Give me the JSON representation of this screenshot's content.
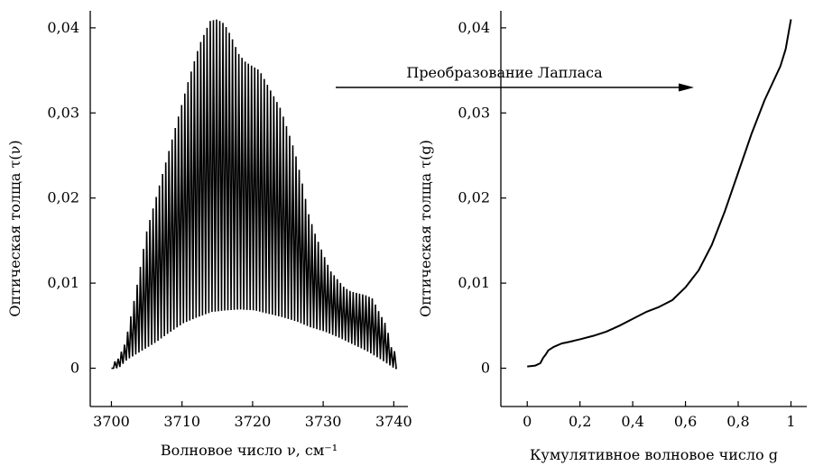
{
  "chart_data": [
    {
      "type": "line",
      "xlabel": "Волновое число ν, см⁻¹",
      "ylabel": "Оптическая толща τ(ν)",
      "xlim": [
        3697,
        3742
      ],
      "ylim": [
        -0.0045,
        0.042
      ],
      "x_ticks": [
        3700,
        3710,
        3720,
        3730,
        3740
      ],
      "x_tick_labels": [
        "3700",
        "3710",
        "3720",
        "3730",
        "3740"
      ],
      "y_ticks": [
        0,
        0.01,
        0.02,
        0.03,
        0.04
      ],
      "y_tick_labels": [
        "0",
        "0,01",
        "0,02",
        "0,03",
        "0,04"
      ],
      "grid": false,
      "legend": "none",
      "series": [
        {
          "style": "oscillating absorption lines",
          "onset_x": 3700.3,
          "end_x": 3740.2,
          "line_spacing": 0.45,
          "peak_envelope": {
            "x": [
              3700.8,
              3702,
              3703.5,
              3705,
              3707,
              3709,
              3711,
              3712.5,
              3714,
              3715,
              3716,
              3717,
              3718,
              3719,
              3720,
              3721,
              3722,
              3723,
              3724,
              3725,
              3726,
              3727,
              3728,
              3729,
              3730,
              3731,
              3732,
              3733,
              3734,
              3735,
              3736,
              3737,
              3738,
              3739,
              3739.8
            ],
            "y": [
              0.0008,
              0.003,
              0.009,
              0.016,
              0.022,
              0.028,
              0.034,
              0.038,
              0.0408,
              0.041,
              0.0405,
              0.039,
              0.037,
              0.036,
              0.0355,
              0.035,
              0.0335,
              0.032,
              0.0305,
              0.028,
              0.0255,
              0.022,
              0.018,
              0.0155,
              0.0135,
              0.0115,
              0.0105,
              0.0095,
              0.009,
              0.0088,
              0.0086,
              0.0082,
              0.0065,
              0.005,
              0.002
            ]
          },
          "trough_envelope": {
            "x": [
              3700.8,
              3702,
              3704,
              3706,
              3708,
              3710,
              3712,
              3714,
              3716,
              3718,
              3720,
              3722,
              3724,
              3726,
              3728,
              3730,
              3732,
              3734,
              3736,
              3738,
              3739.8
            ],
            "y": [
              0.0,
              0.001,
              0.002,
              0.003,
              0.0042,
              0.0053,
              0.006,
              0.0066,
              0.0068,
              0.0069,
              0.0068,
              0.0064,
              0.006,
              0.0055,
              0.0048,
              0.0043,
              0.0036,
              0.0028,
              0.002,
              0.001,
              0.0
            ]
          }
        }
      ]
    },
    {
      "type": "line",
      "xlabel": "Кумулятивное волновое число g",
      "ylabel": "Оптическая толща τ(g)",
      "xlim": [
        -0.1,
        1.06
      ],
      "ylim": [
        -0.0045,
        0.042
      ],
      "x_ticks": [
        0,
        0.2,
        0.4,
        0.6,
        0.8,
        1
      ],
      "x_tick_labels": [
        "0",
        "0,2",
        "0,4",
        "0,6",
        "0,8",
        "1"
      ],
      "y_ticks": [
        0,
        0.01,
        0.02,
        0.03,
        0.04
      ],
      "y_tick_labels": [
        "0",
        "0,01",
        "0,02",
        "0,03",
        "0,04"
      ],
      "grid": false,
      "legend": "none",
      "series": [
        {
          "x": [
            0,
            0.03,
            0.05,
            0.06,
            0.07,
            0.08,
            0.1,
            0.13,
            0.16,
            0.2,
            0.25,
            0.3,
            0.35,
            0.4,
            0.45,
            0.5,
            0.55,
            0.6,
            0.65,
            0.7,
            0.75,
            0.8,
            0.85,
            0.9,
            0.93,
            0.96,
            0.98,
            1.0
          ],
          "y": [
            0.0002,
            0.0003,
            0.0006,
            0.0012,
            0.0016,
            0.0021,
            0.0025,
            0.0029,
            0.0031,
            0.0034,
            0.0038,
            0.0043,
            0.005,
            0.0058,
            0.0066,
            0.0072,
            0.008,
            0.0095,
            0.0115,
            0.0145,
            0.0185,
            0.023,
            0.0275,
            0.0315,
            0.0335,
            0.0355,
            0.0375,
            0.041
          ]
        }
      ]
    }
  ],
  "annotation": {
    "text": "Преобразование Лапласа",
    "arrow_from": "left panel",
    "arrow_to": "right panel"
  }
}
